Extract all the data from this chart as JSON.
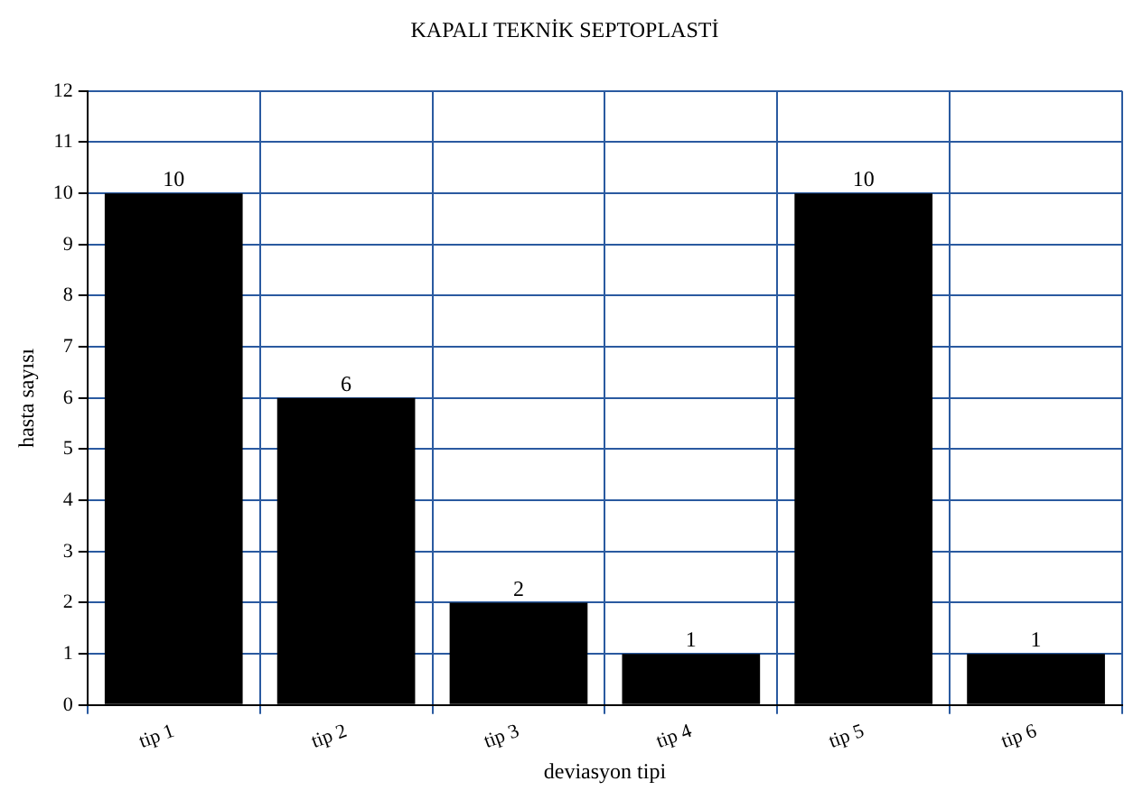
{
  "chart_data": {
    "type": "bar",
    "title": "KAPALI TEKNİK SEPTOPLASTİ",
    "xlabel": "deviasyon tipi",
    "ylabel": "hasta sayısı",
    "categories": [
      "tip 1",
      "tip 2",
      "tip 3",
      "tip 4",
      "tip 5",
      "tip 6"
    ],
    "values": [
      10,
      6,
      2,
      1,
      10,
      1
    ],
    "color": "#000000",
    "ylim": [
      0,
      12
    ],
    "yticks": [
      0,
      1,
      2,
      3,
      4,
      5,
      6,
      7,
      8,
      9,
      10,
      11,
      12
    ],
    "grid": true,
    "data_labels": true
  }
}
